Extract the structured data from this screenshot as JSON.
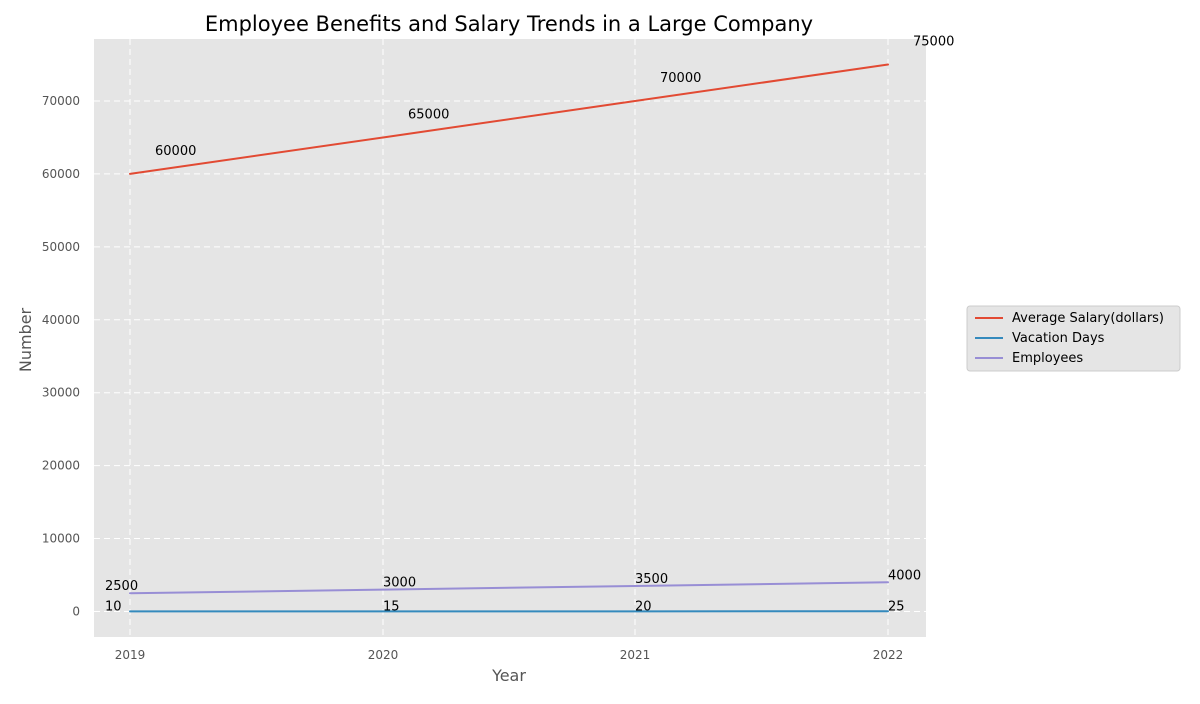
{
  "chart_data": {
    "type": "line",
    "title": "Employee Benefits and Salary Trends in a Large Company",
    "xlabel": "Year",
    "ylabel": "Number",
    "x": [
      "2019",
      "2020",
      "2021",
      "2022"
    ],
    "ylim": [
      -3500,
      78500
    ],
    "yticks": [
      "0",
      "10000",
      "20000",
      "30000",
      "40000",
      "50000",
      "60000",
      "70000"
    ],
    "yticks_values": [
      0,
      10000,
      20000,
      30000,
      40000,
      50000,
      60000,
      70000
    ],
    "grid": true,
    "legend_position": "right",
    "series": [
      {
        "name": "Average Salary(dollars)",
        "color": "#E24A33",
        "values": [
          60000,
          65000,
          70000,
          75000
        ],
        "labels": [
          "60000",
          "65000",
          "70000",
          "75000"
        ]
      },
      {
        "name": "Vacation Days",
        "color": "#348ABD",
        "values": [
          10,
          15,
          20,
          25
        ],
        "labels": [
          "10",
          "15",
          "20",
          "25"
        ]
      },
      {
        "name": "Employees",
        "color": "#988ED5",
        "values": [
          2500,
          3000,
          3500,
          4000
        ],
        "labels": [
          "2500",
          "3000",
          "3500",
          "4000"
        ]
      }
    ],
    "colors": {
      "plot_background": "#E5E5E5",
      "grid": "#FFFFFF",
      "tick_text": "#555555",
      "label_text": "#555555",
      "title_text": "#000000"
    }
  }
}
